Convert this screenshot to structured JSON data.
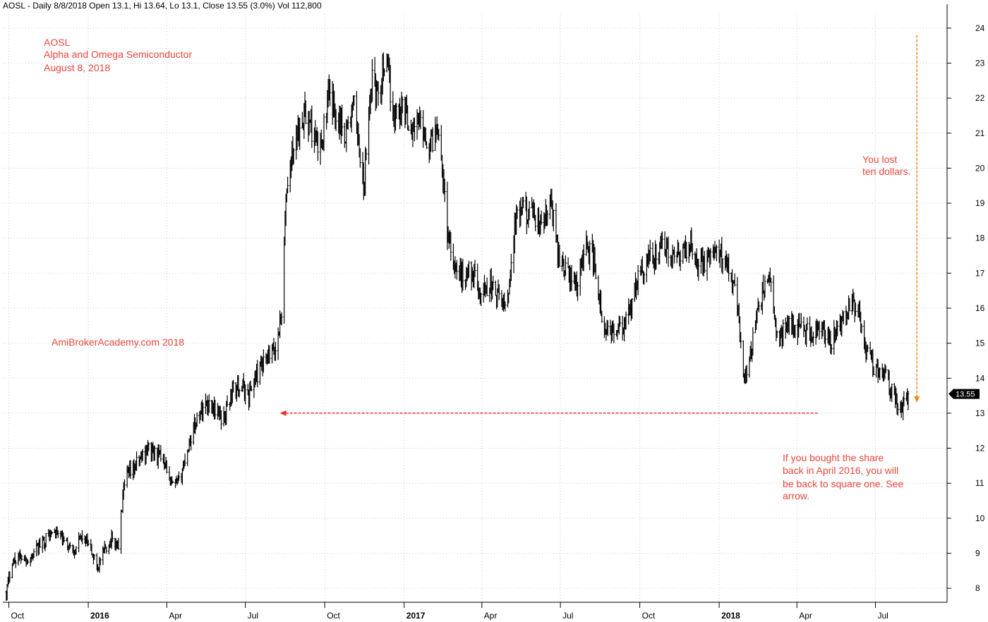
{
  "header": {
    "info": "AOSL - Daily 8/8/2018 Open 13.1, Hi 13.64, Lo 13.1, Close 13.55 (3.0%) Vol 112,800"
  },
  "annotations": {
    "title_lines": [
      "AOSL",
      "Alpha and Omega Semiconductor",
      "August 8, 2018"
    ],
    "watermark": "AmiBrokerAcademy.com  2018",
    "lost_lines": [
      "You lost",
      "ten dollars."
    ],
    "bought_lines": [
      "If you bought the share",
      "back in April 2016, you will",
      "be back to square one. See",
      "arrow."
    ]
  },
  "colors": {
    "annotation_text": "#e8463c",
    "price_bar": "#000000",
    "horizontal_arrow": "#e0352b",
    "vertical_arrow": "#f08a1c",
    "grid": "#c9c9c9",
    "last_price_tag": "#000000"
  },
  "chart_data": {
    "type": "line",
    "style": "ohlc-bars",
    "ticker": "AOSL",
    "ylim": [
      7.6,
      24.4
    ],
    "y_ticks": [
      8,
      9,
      10,
      11,
      12,
      13,
      14,
      15,
      16,
      17,
      18,
      19,
      20,
      21,
      22,
      23,
      24
    ],
    "x_ticks": [
      {
        "label": "Oct",
        "date": "2015-10-01",
        "bold": false
      },
      {
        "label": "2016",
        "date": "2016-01-01",
        "bold": true
      },
      {
        "label": "Apr",
        "date": "2016-04-01",
        "bold": false
      },
      {
        "label": "Jul",
        "date": "2016-07-01",
        "bold": false
      },
      {
        "label": "Oct",
        "date": "2016-10-01",
        "bold": false
      },
      {
        "label": "2017",
        "date": "2017-01-01",
        "bold": true
      },
      {
        "label": "Apr",
        "date": "2017-04-01",
        "bold": false
      },
      {
        "label": "Jul",
        "date": "2017-07-01",
        "bold": false
      },
      {
        "label": "Oct",
        "date": "2017-10-01",
        "bold": false
      },
      {
        "label": "2018",
        "date": "2018-01-01",
        "bold": true
      },
      {
        "label": "Apr",
        "date": "2018-04-01",
        "bold": false
      },
      {
        "label": "Jul",
        "date": "2018-07-01",
        "bold": false
      }
    ],
    "series": [
      {
        "x": [
          "2015-09-28",
          "2015-10-05",
          "2015-10-15",
          "2015-10-25",
          "2015-11-05",
          "2015-11-15",
          "2015-11-25",
          "2015-12-05",
          "2015-12-15",
          "2015-12-25",
          "2016-01-05",
          "2016-01-12",
          "2016-01-20",
          "2016-01-28",
          "2016-02-05",
          "2016-02-10",
          "2016-02-15",
          "2016-02-20",
          "2016-03-01",
          "2016-03-10",
          "2016-03-20",
          "2016-03-30",
          "2016-04-05",
          "2016-04-15",
          "2016-04-25",
          "2016-05-05",
          "2016-05-15",
          "2016-05-25",
          "2016-06-05",
          "2016-06-15",
          "2016-06-25",
          "2016-07-05",
          "2016-07-12",
          "2016-07-20",
          "2016-07-28",
          "2016-08-05",
          "2016-08-12",
          "2016-08-15",
          "2016-08-18",
          "2016-08-25",
          "2016-09-05",
          "2016-09-15",
          "2016-09-25",
          "2016-10-05",
          "2016-10-15",
          "2016-10-25",
          "2016-11-05",
          "2016-11-15",
          "2016-11-25",
          "2016-12-01",
          "2016-12-10",
          "2016-12-20",
          "2016-12-30",
          "2017-01-10",
          "2017-01-20",
          "2017-01-30",
          "2017-02-10",
          "2017-02-20",
          "2017-03-01",
          "2017-03-10",
          "2017-03-20",
          "2017-03-30",
          "2017-04-10",
          "2017-04-20",
          "2017-04-30",
          "2017-05-10",
          "2017-05-20",
          "2017-05-30",
          "2017-06-10",
          "2017-06-20",
          "2017-06-30",
          "2017-07-10",
          "2017-07-20",
          "2017-07-30",
          "2017-08-10",
          "2017-08-20",
          "2017-08-30",
          "2017-09-10",
          "2017-09-20",
          "2017-09-30",
          "2017-10-10",
          "2017-10-20",
          "2017-10-30",
          "2017-11-10",
          "2017-11-20",
          "2017-11-30",
          "2017-12-10",
          "2017-12-20",
          "2017-12-30",
          "2018-01-10",
          "2018-01-20",
          "2018-01-30",
          "2018-02-10",
          "2018-02-20",
          "2018-03-01",
          "2018-03-10",
          "2018-03-20",
          "2018-03-30",
          "2018-04-10",
          "2018-04-20",
          "2018-04-30",
          "2018-05-10",
          "2018-05-20",
          "2018-05-30",
          "2018-06-10",
          "2018-06-20",
          "2018-06-30",
          "2018-07-10",
          "2018-07-20",
          "2018-07-30",
          "2018-08-08"
        ],
        "close": [
          7.9,
          8.8,
          8.9,
          8.8,
          9.2,
          9.5,
          9.6,
          9.3,
          9.1,
          9.5,
          9.0,
          8.6,
          9.1,
          9.4,
          9.2,
          10.6,
          11.2,
          11.3,
          11.7,
          12.0,
          11.8,
          11.7,
          10.9,
          11.0,
          12.0,
          12.8,
          13.3,
          13.2,
          12.8,
          13.6,
          13.8,
          13.5,
          14.0,
          14.3,
          14.6,
          14.8,
          15.9,
          17.9,
          19.4,
          20.5,
          21.6,
          21.2,
          20.4,
          22.0,
          21.6,
          21.0,
          21.8,
          19.3,
          22.8,
          22.0,
          23.2,
          21.5,
          21.8,
          21.1,
          21.4,
          20.6,
          21.3,
          18.2,
          17.2,
          16.9,
          17.1,
          16.4,
          16.7,
          16.3,
          16.1,
          18.5,
          18.8,
          18.6,
          18.3,
          19.0,
          17.4,
          17.0,
          16.6,
          17.8,
          17.3,
          15.2,
          15.4,
          15.3,
          15.9,
          17.0,
          17.4,
          17.5,
          17.8,
          17.3,
          17.6,
          17.8,
          17.2,
          17.4,
          17.6,
          17.4,
          16.6,
          14.0,
          15.2,
          16.5,
          16.8,
          15.0,
          15.6,
          15.5,
          15.4,
          15.2,
          15.4,
          14.9,
          15.6,
          16.0,
          16.1,
          14.8,
          14.3,
          14.3,
          13.6,
          13.1,
          13.55
        ]
      }
    ],
    "last_price": 13.55,
    "last_price_label": "13.55",
    "horizontal_arrow_level": 13.0,
    "horizontal_arrow_from": "2018-04-25",
    "horizontal_arrow_to": "2016-08-10",
    "vertical_arrow_date": "2018-08-18",
    "vertical_arrow_from": 23.8,
    "vertical_arrow_to": 13.3
  }
}
